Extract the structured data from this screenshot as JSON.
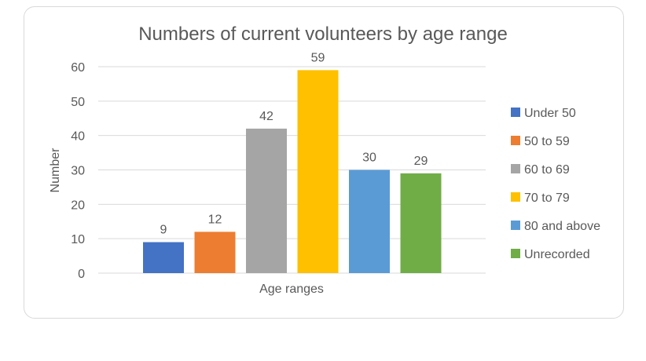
{
  "chart_data": {
    "type": "bar",
    "title": "Numbers of current volunteers by age range",
    "xlabel": "Age ranges",
    "ylabel": "Number",
    "ylim": [
      0,
      60
    ],
    "yticks": [
      0,
      10,
      20,
      30,
      40,
      50,
      60
    ],
    "grid": true,
    "legend_position": "right",
    "categories": [
      "Under 50",
      "50 to 59",
      "60 to 69",
      "70 to 79",
      "80 and above",
      "Unrecorded"
    ],
    "values": [
      9,
      12,
      42,
      59,
      30,
      29
    ],
    "colors": [
      "#4472C4",
      "#ED7D31",
      "#A5A5A5",
      "#FFC000",
      "#5B9BD5",
      "#70AD47"
    ]
  }
}
